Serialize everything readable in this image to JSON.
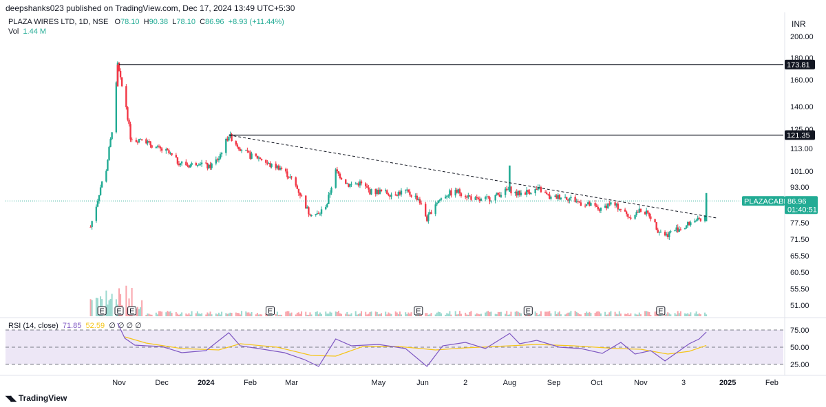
{
  "header": {
    "publish_text": "deepshanks023 published on TradingView.com, Dec 17, 2024 13:49 UTC+5:30",
    "symbol": "PLAZA WIRES LTD, 1D, NSE",
    "o_label": "O",
    "o_value": "78.10",
    "h_label": "H",
    "h_value": "90.38",
    "l_label": "L",
    "l_value": "78.10",
    "c_label": "C",
    "c_value": "86.96",
    "change": "+8.93 (+11.44%)",
    "vol_label": "Vol",
    "vol_value": "1.44 M",
    "currency": "INR"
  },
  "rsi": {
    "label": "RSI (14, close)",
    "value": "71.85",
    "ma_value": "52.59",
    "placeholders": "∅ ∅ ∅ ∅"
  },
  "footer": {
    "brand": "TradingView"
  },
  "colors": {
    "up": "#22ab94",
    "down": "#f23645",
    "rsi": "#7e57c2",
    "rsi_ma": "#f5c518",
    "band": "#ede7f6"
  },
  "chart_data": {
    "type": "candlestick",
    "symbol": "PLAZACABLE",
    "last_price": "86.96",
    "countdown": "01:40:51",
    "y_ticks": [
      200.0,
      180.0,
      160.0,
      140.0,
      125.0,
      113.0,
      101.0,
      93.0,
      77.5,
      71.5,
      65.5,
      60.5,
      55.5,
      51.0
    ],
    "y_tick_labels": [
      "200.00",
      "180.00",
      "160.00",
      "140.00",
      "125.00",
      "113.00",
      "101.00",
      "93.00",
      "77.50",
      "71.50",
      "65.50",
      "60.50",
      "55.50",
      "51.00"
    ],
    "x_labels": [
      "Nov",
      "Dec",
      "2024",
      "Feb",
      "Mar",
      "May",
      "Jun",
      "2",
      "Aug",
      "Sep",
      "Oct",
      "Nov",
      "3",
      "2025",
      "Feb"
    ],
    "x_label_dates": [
      "2023-11-01",
      "2023-12-01",
      "2024-01-01",
      "2024-02-01",
      "2024-03-01",
      "2024-05-01",
      "2024-06-01",
      "2024-07-01",
      "2024-08-01",
      "2024-09-01",
      "2024-10-01",
      "2024-11-01",
      "2024-12-01",
      "2025-01-01",
      "2025-02-01"
    ],
    "x_label_bold": [
      false,
      false,
      true,
      false,
      false,
      false,
      false,
      false,
      false,
      false,
      false,
      false,
      false,
      true,
      false
    ],
    "horizontal_lines": [
      {
        "value": 173.81,
        "label": "173.81",
        "start_date": "2023-11-01"
      },
      {
        "value": 121.35,
        "label": "121.35",
        "start_date": "2024-01-17"
      }
    ],
    "trendline": {
      "start_date": "2024-01-17",
      "start_value": 121.35,
      "end_date": "2024-12-25",
      "end_value": 79.5
    },
    "earnings_markers": [
      "2023-10-20",
      "2023-11-01",
      "2023-11-10",
      "2024-02-15",
      "2024-05-29",
      "2024-08-14",
      "2024-11-15"
    ],
    "earnings_label": "E",
    "price_path": [
      [
        "2023-10-12",
        76
      ],
      [
        "2023-10-16",
        85
      ],
      [
        "2023-10-19",
        93
      ],
      [
        "2023-10-23",
        102
      ],
      [
        "2023-10-26",
        118
      ],
      [
        "2023-10-29",
        138
      ],
      [
        "2023-10-31",
        173.81
      ],
      [
        "2023-11-02",
        160
      ],
      [
        "2023-11-06",
        140
      ],
      [
        "2023-11-09",
        120
      ],
      [
        "2023-11-13",
        118
      ],
      [
        "2023-11-17",
        120
      ],
      [
        "2023-11-22",
        116
      ],
      [
        "2023-11-28",
        113
      ],
      [
        "2023-12-05",
        111
      ],
      [
        "2023-12-12",
        106
      ],
      [
        "2023-12-20",
        104
      ],
      [
        "2023-12-27",
        106
      ],
      [
        "2024-01-03",
        103
      ],
      [
        "2024-01-10",
        108
      ],
      [
        "2024-01-17",
        121.35
      ],
      [
        "2024-01-24",
        114
      ],
      [
        "2024-02-01",
        109
      ],
      [
        "2024-02-08",
        108
      ],
      [
        "2024-02-15",
        104
      ],
      [
        "2024-02-22",
        103
      ],
      [
        "2024-03-01",
        97
      ],
      [
        "2024-03-07",
        90
      ],
      [
        "2024-03-13",
        82
      ],
      [
        "2024-03-20",
        81
      ],
      [
        "2024-03-26",
        86
      ],
      [
        "2024-04-01",
        101
      ],
      [
        "2024-04-10",
        94
      ],
      [
        "2024-04-18",
        95
      ],
      [
        "2024-04-25",
        91
      ],
      [
        "2024-05-02",
        91
      ],
      [
        "2024-05-10",
        90
      ],
      [
        "2024-05-20",
        91
      ],
      [
        "2024-05-29",
        88
      ],
      [
        "2024-06-04",
        79
      ],
      [
        "2024-06-10",
        86
      ],
      [
        "2024-06-18",
        90
      ],
      [
        "2024-06-26",
        91
      ],
      [
        "2024-07-03",
        89
      ],
      [
        "2024-07-10",
        87
      ],
      [
        "2024-07-18",
        88
      ],
      [
        "2024-07-25",
        90
      ],
      [
        "2024-08-01",
        92
      ],
      [
        "2024-08-06",
        90
      ],
      [
        "2024-08-14",
        91
      ],
      [
        "2024-08-22",
        92
      ],
      [
        "2024-08-30",
        88
      ],
      [
        "2024-09-06",
        89
      ],
      [
        "2024-09-13",
        88
      ],
      [
        "2024-09-20",
        86
      ],
      [
        "2024-09-27",
        85
      ],
      [
        "2024-10-04",
        83
      ],
      [
        "2024-10-10",
        86
      ],
      [
        "2024-10-17",
        84
      ],
      [
        "2024-10-24",
        80
      ],
      [
        "2024-11-01",
        83
      ],
      [
        "2024-11-07",
        81
      ],
      [
        "2024-11-13",
        75
      ],
      [
        "2024-11-19",
        73
      ],
      [
        "2024-11-25",
        75
      ],
      [
        "2024-12-02",
        76
      ],
      [
        "2024-12-09",
        79
      ],
      [
        "2024-12-13",
        78
      ],
      [
        "2024-12-16",
        80
      ],
      [
        "2024-12-17",
        86.96
      ]
    ],
    "volume_scale_ticks": [],
    "rsi_ticks": [
      75.0,
      50.0,
      25.0
    ],
    "rsi_tick_labels": [
      "75.00",
      "50.00",
      "25.00"
    ],
    "rsi_upper": 70,
    "rsi_mid": 50,
    "rsi_lower": 30,
    "rsi_path": [
      [
        "2023-10-31",
        85
      ],
      [
        "2023-11-05",
        63
      ],
      [
        "2023-11-12",
        53
      ],
      [
        "2023-11-20",
        52
      ],
      [
        "2023-12-01",
        51
      ],
      [
        "2023-12-15",
        42
      ],
      [
        "2024-01-01",
        45
      ],
      [
        "2024-01-17",
        71
      ],
      [
        "2024-01-25",
        52
      ],
      [
        "2024-02-10",
        47
      ],
      [
        "2024-02-25",
        42
      ],
      [
        "2024-03-10",
        32
      ],
      [
        "2024-03-20",
        22
      ],
      [
        "2024-04-01",
        62
      ],
      [
        "2024-04-12",
        52
      ],
      [
        "2024-05-01",
        54
      ],
      [
        "2024-05-20",
        48
      ],
      [
        "2024-06-04",
        22
      ],
      [
        "2024-06-15",
        52
      ],
      [
        "2024-07-01",
        57
      ],
      [
        "2024-07-15",
        48
      ],
      [
        "2024-08-01",
        70
      ],
      [
        "2024-08-08",
        55
      ],
      [
        "2024-08-20",
        60
      ],
      [
        "2024-09-05",
        50
      ],
      [
        "2024-09-20",
        48
      ],
      [
        "2024-10-05",
        41
      ],
      [
        "2024-10-18",
        57
      ],
      [
        "2024-10-28",
        40
      ],
      [
        "2024-11-08",
        45
      ],
      [
        "2024-11-18",
        30
      ],
      [
        "2024-12-05",
        55
      ],
      [
        "2024-12-12",
        62
      ],
      [
        "2024-12-17",
        71.85
      ]
    ],
    "rsi_ma_path": [
      [
        "2023-11-05",
        65
      ],
      [
        "2023-11-20",
        56
      ],
      [
        "2023-12-15",
        48
      ],
      [
        "2024-01-10",
        46
      ],
      [
        "2024-01-25",
        55
      ],
      [
        "2024-02-20",
        50
      ],
      [
        "2024-03-15",
        38
      ],
      [
        "2024-04-01",
        37
      ],
      [
        "2024-04-20",
        51
      ],
      [
        "2024-05-15",
        51
      ],
      [
        "2024-06-10",
        46
      ],
      [
        "2024-07-01",
        49
      ],
      [
        "2024-08-01",
        52
      ],
      [
        "2024-08-20",
        54
      ],
      [
        "2024-09-15",
        52
      ],
      [
        "2024-10-15",
        48
      ],
      [
        "2024-11-01",
        47
      ],
      [
        "2024-11-20",
        40
      ],
      [
        "2024-12-05",
        44
      ],
      [
        "2024-12-17",
        52.59
      ]
    ]
  }
}
